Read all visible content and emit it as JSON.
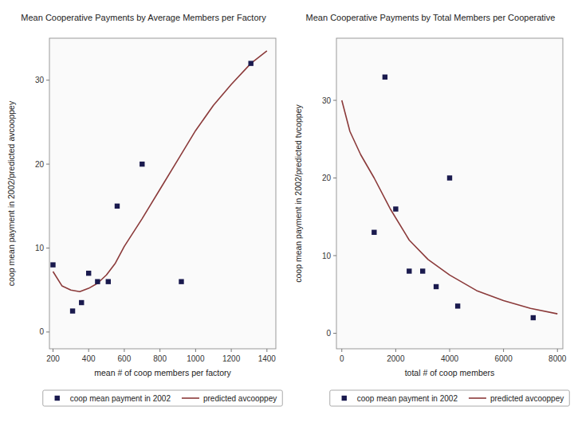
{
  "chart_data": [
    {
      "type": "scatter",
      "title": "Mean Cooperative Payments by Average Members per Factory",
      "xlabel": "mean # of coop members per factory",
      "ylabel": "coop mean payment in 2002/predicted avcooppey",
      "series": [
        {
          "name": "coop mean payment in 2002",
          "type": "scatter",
          "marker": "square",
          "color": "#1a1a4e",
          "x": [
            200,
            310,
            360,
            400,
            450,
            510,
            560,
            700,
            920,
            1310
          ],
          "values": [
            8,
            2.5,
            3.5,
            7.0,
            6.0,
            6.0,
            15.0,
            20.0,
            6.0,
            32.0
          ]
        },
        {
          "name": "predicted avcooppey",
          "type": "line",
          "line_style": "solid",
          "color": "#8B3A3A",
          "x": [
            200,
            250,
            300,
            350,
            400,
            450,
            500,
            550,
            600,
            700,
            800,
            900,
            1000,
            1100,
            1200,
            1310,
            1400
          ],
          "values": [
            7.2,
            5.5,
            5.0,
            4.8,
            5.2,
            5.8,
            6.8,
            8.2,
            10.2,
            13.5,
            17.0,
            20.5,
            24.0,
            27.0,
            29.5,
            32.0,
            33.5
          ]
        }
      ],
      "xlim": [
        180,
        1450
      ],
      "ylim": [
        -2,
        35
      ],
      "xticks": [
        200,
        400,
        600,
        800,
        1000,
        1200,
        1400
      ],
      "yticks": [
        0,
        10,
        20,
        30
      ],
      "grid": false,
      "legend": "bottom"
    },
    {
      "type": "scatter",
      "title": "Mean Cooperative Payments by Total Members per Cooperative",
      "xlabel": "total # of coop members",
      "ylabel": "coop mean payment in 2002/predicted tvcoppey",
      "series": [
        {
          "name": "coop mean payment in 2002",
          "type": "scatter",
          "marker": "square",
          "color": "#1a1a4e",
          "x": [
            1200,
            1600,
            2000,
            2500,
            3000,
            3500,
            4000,
            4300,
            7100
          ],
          "values": [
            13.0,
            33.0,
            16.0,
            8.0,
            8.0,
            6.0,
            20.0,
            3.5,
            2.0
          ]
        },
        {
          "name": "predicted avcooppey",
          "type": "line",
          "line_style": "solid",
          "color": "#8B3A3A",
          "x": [
            0,
            300,
            700,
            1200,
            1800,
            2500,
            3200,
            4000,
            5000,
            6000,
            7000,
            8000
          ],
          "values": [
            30,
            26,
            23,
            20,
            16,
            12,
            9.5,
            7.5,
            5.5,
            4.2,
            3.2,
            2.5
          ]
        }
      ],
      "xlim": [
        -200,
        8200
      ],
      "ylim": [
        -2,
        38
      ],
      "xticks": [
        0,
        2000,
        4000,
        6000,
        8000
      ],
      "yticks": [
        0,
        10,
        20,
        30
      ],
      "grid": false,
      "legend": "bottom"
    }
  ]
}
